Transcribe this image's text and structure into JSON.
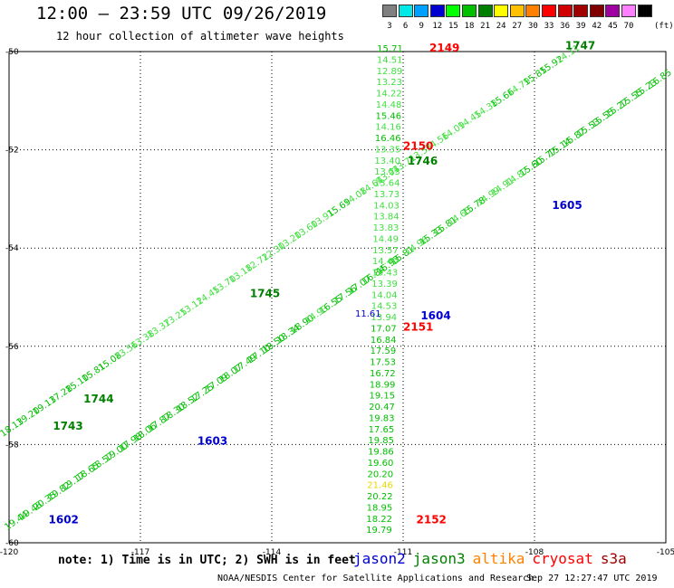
{
  "header": {
    "title": "12:00 – 23:59 UTC 09/26/2019",
    "subtitle": "12 hour collection of altimeter wave heights"
  },
  "legend": {
    "unit": "(ft)",
    "bins": [
      {
        "label": "3",
        "color": "#808080"
      },
      {
        "label": "6",
        "color": "#00e8e8"
      },
      {
        "label": "9",
        "color": "#00a0ff"
      },
      {
        "label": "12",
        "color": "#0000d0"
      },
      {
        "label": "15",
        "color": "#00ff00"
      },
      {
        "label": "18",
        "color": "#00c000"
      },
      {
        "label": "21",
        "color": "#008000"
      },
      {
        "label": "24",
        "color": "#ffff00"
      },
      {
        "label": "27",
        "color": "#ffc000"
      },
      {
        "label": "30",
        "color": "#ff8000"
      },
      {
        "label": "33",
        "color": "#ff0000"
      },
      {
        "label": "36",
        "color": "#d00000"
      },
      {
        "label": "39",
        "color": "#a00000"
      },
      {
        "label": "42",
        "color": "#800000"
      },
      {
        "label": "45",
        "color": "#a000a0"
      },
      {
        "label": "70",
        "color": "#ff80ff"
      },
      {
        "label": "",
        "color": "#000000"
      }
    ]
  },
  "map": {
    "lon_range": [
      -120,
      -105
    ],
    "lat_range": [
      -60,
      -50
    ],
    "lon_ticks": [
      {
        "value": -120,
        "label": "-120"
      },
      {
        "value": -117,
        "label": "-117"
      },
      {
        "value": -114,
        "label": "-114"
      },
      {
        "value": -111,
        "label": "-111"
      },
      {
        "value": -108,
        "label": "-108"
      },
      {
        "value": -105,
        "label": "-105"
      }
    ],
    "lat_ticks": [
      {
        "value": -50,
        "label": "-50"
      },
      {
        "value": -52,
        "label": "-52"
      },
      {
        "value": -54,
        "label": "-54"
      },
      {
        "value": -56,
        "label": "-56"
      },
      {
        "value": -58,
        "label": "-58"
      },
      {
        "value": -60,
        "label": "-60"
      }
    ],
    "tracks": [
      {
        "name": "track-jason3-1743-1747",
        "color": "#00c000",
        "start": [
          -119.9,
          -57.7
        ],
        "end": [
          -107.2,
          -50.1
        ],
        "readings": [
          "18.13",
          "19.20",
          "19.13",
          "17.28",
          "15.10",
          "15.81",
          "15.08",
          "13.56",
          "13.38",
          "13.37",
          "13.25",
          "13.12",
          "14.45",
          "13.70",
          "13.18",
          "12.72",
          "12.30",
          "13.20",
          "13.60",
          "13.91",
          "15.69",
          "14.08",
          "14.64",
          "13.94",
          "13.71",
          "13.53",
          "14.56",
          "14.09",
          "14.45",
          "14.38",
          "15.66",
          "14.79",
          "15.85",
          "15.92",
          "14.11"
        ]
      },
      {
        "name": "track-jason3-1602-1605",
        "color": "#00c000",
        "start": [
          -119.8,
          -59.6
        ],
        "end": [
          -105.1,
          -50.6
        ],
        "readings": [
          "19.44",
          "19.48",
          "20.35",
          "19.82",
          "19.17",
          "18.65",
          "18.57",
          "19.00",
          "17.98",
          "18.06",
          "17.87",
          "18.30",
          "18.52",
          "17.25",
          "17.09",
          "18.07",
          "17.49",
          "17.10",
          "18.50",
          "18.34",
          "18.90",
          "14.93",
          "16.55",
          "17.56",
          "17.07",
          "16.84",
          "15.93",
          "15.81",
          "14.96",
          "15.33",
          "15.81",
          "14.65",
          "15.78",
          "14.99",
          "14.91",
          "14.87",
          "15.60",
          "15.77",
          "15.14",
          "15.87",
          "15.53",
          "15.55",
          "15.27",
          "15.55",
          "15.23",
          "16.85"
        ]
      },
      {
        "name": "track-jason3-2149-2152",
        "color": "#00c000",
        "start": [
          -111.3,
          -50.0
        ],
        "end": [
          -111.55,
          -59.8
        ],
        "readings": [
          "15.71",
          "14.51",
          "12.89",
          "13.23",
          "14.22",
          "14.48",
          "15.46",
          "14.16",
          "16.46",
          "13.35",
          "13.40",
          "13.53",
          "13.64",
          "13.73",
          "14.03",
          "13.84",
          "13.83",
          "14.49",
          "13.57",
          "14.40",
          "13.43",
          "13.39",
          "14.04",
          "14.53",
          "13.94",
          "17.07",
          "16.84",
          "17.59",
          "17.53",
          "16.72",
          "18.99",
          "19.15",
          "20.47",
          "19.83",
          "17.65",
          "19.85",
          "19.86",
          "19.60",
          "20.20",
          "21.46",
          "20.22",
          "18.95",
          "18.22",
          "19.79"
        ]
      }
    ],
    "readings_sampled": [
      {
        "value": "11.61",
        "lon": -111.8,
        "lat": -55.4,
        "color": "#0000d0"
      }
    ],
    "pass_labels": [
      {
        "text": "2149",
        "lon": -110.4,
        "lat": -50.0,
        "color": "#ff0000"
      },
      {
        "text": "1747",
        "lon": -107.3,
        "lat": -49.95,
        "color": "#008000"
      },
      {
        "text": "2150",
        "lon": -111.0,
        "lat": -52.0,
        "color": "#ff0000"
      },
      {
        "text": "1746",
        "lon": -110.9,
        "lat": -52.3,
        "color": "#008000"
      },
      {
        "text": "1605",
        "lon": -107.6,
        "lat": -53.2,
        "color": "#0000d0"
      },
      {
        "text": "1745",
        "lon": -114.5,
        "lat": -55.0,
        "color": "#008000"
      },
      {
        "text": "1604",
        "lon": -110.6,
        "lat": -55.45,
        "color": "#0000d0"
      },
      {
        "text": "2151",
        "lon": -111.0,
        "lat": -55.68,
        "color": "#ff0000"
      },
      {
        "text": "1744",
        "lon": -118.3,
        "lat": -57.15,
        "color": "#008000"
      },
      {
        "text": "1743",
        "lon": -119.0,
        "lat": -57.7,
        "color": "#008000"
      },
      {
        "text": "1603",
        "lon": -115.7,
        "lat": -58.0,
        "color": "#0000d0"
      },
      {
        "text": "1602",
        "lon": -119.1,
        "lat": -59.6,
        "color": "#0000d0"
      },
      {
        "text": "2152",
        "lon": -110.7,
        "lat": -59.6,
        "color": "#ff0000"
      }
    ]
  },
  "note": "note: 1) Time is in UTC; 2) SWH is in feet",
  "satellites": [
    {
      "name": "jason2",
      "color": "#0000d0"
    },
    {
      "name": "jason3",
      "color": "#008000"
    },
    {
      "name": "altika",
      "color": "#ff8000"
    },
    {
      "name": "cryosat",
      "color": "#ff0000"
    },
    {
      "name": "s3a",
      "color": "#a00000"
    }
  ],
  "footer": {
    "organization": "NOAA/NESDIS Center for Satellite Applications and Research",
    "generated": "Sep 27 12:27:47 UTC 2019"
  }
}
